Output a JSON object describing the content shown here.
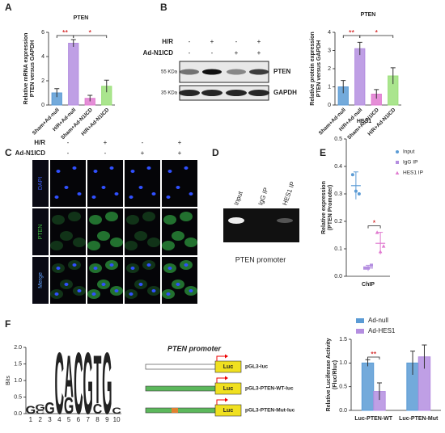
{
  "panel_labels": [
    "A",
    "B",
    "C",
    "D",
    "E",
    "F"
  ],
  "chart_data": [
    {
      "type": "bar",
      "title": "PTEN",
      "ylabel": [
        "Relative mRNA expression",
        "PTEN versus GAPDH"
      ],
      "categories": [
        "Sham+Ad-null",
        "H/R+Ad-null",
        "Sham+Ad-N1ICD",
        "H/R+Ad-N1ICD"
      ],
      "values": [
        1.0,
        5.1,
        0.55,
        1.55
      ],
      "errors": [
        0.35,
        0.3,
        0.25,
        0.5
      ],
      "colors": [
        "#5b9bd5",
        "#b48ee0",
        "#e07ad0",
        "#9be07a"
      ],
      "ylim": [
        0,
        6
      ],
      "yticks": [
        0,
        2,
        4,
        6
      ],
      "annotations": [
        "**",
        "*"
      ]
    },
    {
      "type": "bar",
      "title": "PTEN",
      "ylabel": [
        "Relative protein expression",
        "PTEN versus GAPDH"
      ],
      "categories": [
        "Sham+Ad-null",
        "H/R+Ad-null",
        "Sham+Ad-N1ICD",
        "H/R+Ad-N1ICD"
      ],
      "values": [
        1.0,
        3.1,
        0.6,
        1.6
      ],
      "errors": [
        0.35,
        0.35,
        0.25,
        0.45
      ],
      "colors": [
        "#5b9bd5",
        "#b48ee0",
        "#e07ad0",
        "#9be07a"
      ],
      "ylim": [
        0,
        4
      ],
      "yticks": [
        0,
        1,
        2,
        3,
        4
      ],
      "annotations": [
        "**",
        "*"
      ]
    },
    {
      "type": "dot",
      "title": "HES1",
      "ylabel": [
        "Relative expression",
        "(PTEN Promoter)"
      ],
      "xlabel": "ChIP",
      "ylim": [
        0,
        0.5
      ],
      "yticks": [
        {
          "value": 0,
          "label": "0.0"
        },
        0.1,
        0.2,
        0.3,
        0.4,
        0.5
      ],
      "series": [
        {
          "name": "Input",
          "color": "#5b9bd5",
          "values": [
            0.37,
            0.31,
            0.3
          ],
          "mean": 0.33,
          "error": 0.05
        },
        {
          "name": "IgG IP",
          "color": "#b48ee0",
          "values": [
            0.03,
            0.03,
            0.04
          ],
          "mean": 0.03,
          "error": 0.01
        },
        {
          "name": "HES1 IP",
          "color": "#e07ad0",
          "values": [
            0.16,
            0.09,
            0.11
          ],
          "mean": 0.12,
          "error": 0.04
        }
      ],
      "annotations": [
        "*"
      ]
    },
    {
      "type": "grouped_bar",
      "ylabel": [
        "Relative Luciferase Activity",
        "(Fluc/Rluc)"
      ],
      "categories": [
        "Luc-PTEN-WT",
        "Luc-PTEN-Mut"
      ],
      "series": [
        {
          "name": "Ad-null",
          "color": "#5b9bd5",
          "values": [
            1.0,
            1.0
          ],
          "errors": [
            0.07,
            0.25
          ]
        },
        {
          "name": "Ad-HES1",
          "color": "#b48ee0",
          "values": [
            0.4,
            1.13
          ],
          "errors": [
            0.18,
            0.25
          ]
        }
      ],
      "ylim": [
        0,
        1.5
      ],
      "yticks": [
        {
          "value": 0,
          "label": "0.0"
        },
        0.5,
        {
          "value": 1,
          "label": "1.0"
        },
        1.5
      ],
      "annotations": [
        "**"
      ]
    },
    {
      "type": "logo",
      "ylabel": "Bits",
      "ylim": [
        0,
        2
      ],
      "yticks": [
        {
          "value": 0,
          "label": "0.0"
        },
        0.5,
        {
          "value": 1,
          "label": "1.0"
        },
        1.5,
        {
          "value": 2,
          "label": "2.0"
        }
      ],
      "x": [
        1,
        2,
        3,
        4,
        5,
        6,
        7,
        8,
        9,
        10
      ],
      "stacks": [
        [
          {
            "letter": "G",
            "bits": 0.25
          }
        ],
        [
          {
            "letter": "C",
            "bits": 0.1
          },
          {
            "letter": "G",
            "bits": 0.2
          }
        ],
        [
          {
            "letter": "G",
            "bits": 0.35
          }
        ],
        [
          {
            "letter": "C",
            "bits": 1.9
          }
        ],
        [
          {
            "letter": "G",
            "bits": 0.5
          },
          {
            "letter": "A",
            "bits": 1.3
          }
        ],
        [
          {
            "letter": "C",
            "bits": 1.9
          }
        ],
        [
          {
            "letter": "G",
            "bits": 1.9
          }
        ],
        [
          {
            "letter": "C",
            "bits": 0.3
          },
          {
            "letter": "T",
            "bits": 1.5
          }
        ],
        [
          {
            "letter": "G",
            "bits": 1.9
          }
        ],
        [
          {
            "letter": "C",
            "bits": 0.2
          }
        ]
      ],
      "letter_colors": {
        "A": "#3cb043",
        "C": "#3b7fd0",
        "G": "#f0a020",
        "T": "#e03030"
      }
    }
  ],
  "blot": {
    "rows": [
      "H/R",
      "Ad-N1ICD"
    ],
    "signs": [
      [
        "-",
        "+",
        "-",
        "+"
      ],
      [
        "-",
        "-",
        "+",
        "+"
      ]
    ],
    "markers": [
      "55 KDa",
      "35 KDa"
    ],
    "proteins": [
      "PTEN",
      "GAPDH"
    ]
  },
  "microscopy": {
    "rows": [
      "H/R",
      "Ad-N1ICD"
    ],
    "signs": [
      [
        "-",
        "+",
        "-",
        "+"
      ],
      [
        "-",
        "-",
        "+",
        "+"
      ]
    ],
    "channels": [
      "DAPI",
      "PTEN",
      "Merge"
    ]
  },
  "gel": {
    "lanes": [
      "Input",
      "IgG IP",
      "HES1 IP"
    ],
    "caption": "PTEN promoter"
  },
  "constructs": {
    "title": "PTEN promoter",
    "reporter": "Luc",
    "names": [
      "pGL3-luc",
      "pGL3-PTEN-WT-luc",
      "pGL3-PTEN-Mut-luc"
    ]
  }
}
